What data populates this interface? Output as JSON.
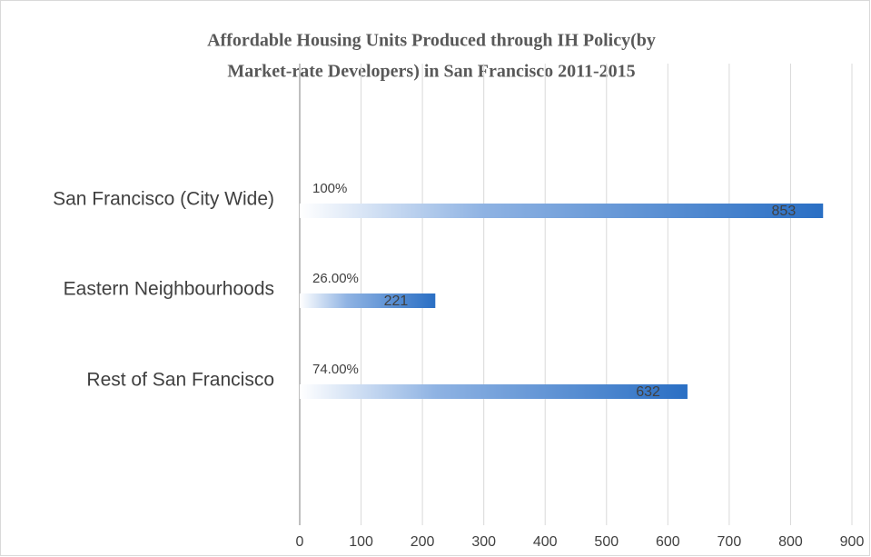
{
  "chart_data": {
    "type": "hbar",
    "title": [
      "Affordable Housing Units Produced through IH Policy(by",
      "Market-rate Developers) in San Francisco 2011-2015"
    ],
    "categories": [
      "San Francisco (City Wide)",
      "Eastern Neighbourhoods",
      "Rest of San Francisco"
    ],
    "values": [
      853,
      221,
      632
    ],
    "annotations": [
      "100%",
      "26.00%",
      "74.00%"
    ],
    "color": "#2a6fc4",
    "xlim": [
      0,
      900
    ],
    "xticks": [
      0,
      100,
      200,
      300,
      400,
      500,
      600,
      700,
      800,
      900
    ],
    "grid": true
  }
}
